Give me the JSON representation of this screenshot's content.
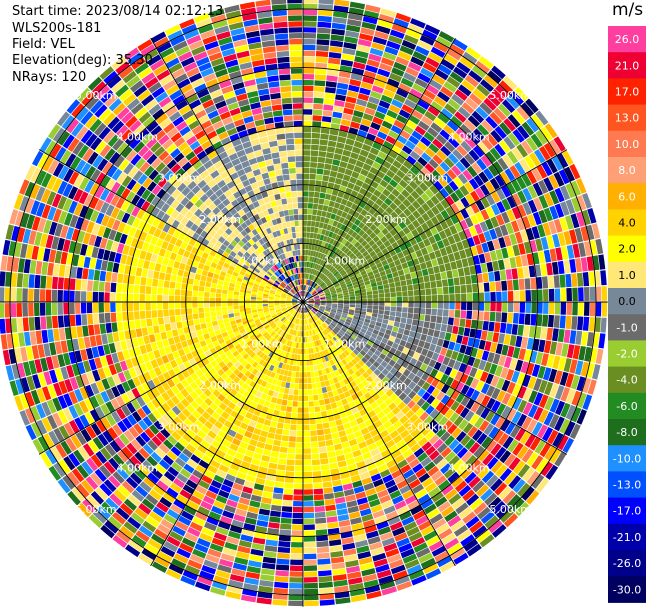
{
  "header": {
    "start_time": "Start time: 2023/08/14 02:12:13",
    "site": "WLS200s-181",
    "field": "Field: VEL",
    "elevation": "Elevation(deg): 35.30",
    "nrays": "NRays: 120"
  },
  "colorbar": {
    "unit": "m/s",
    "labels": [
      "26.0",
      "21.0",
      "17.0",
      "13.0",
      "10.0",
      "8.0",
      "6.0",
      "4.0",
      "2.0",
      "1.0",
      "0.0",
      "-1.0",
      "-2.0",
      "-4.0",
      "-6.0",
      "-8.0",
      "-10.0",
      "-13.0",
      "-17.0",
      "-21.0",
      "-26.0",
      "-30.0"
    ],
    "colors": [
      "#ff3fa0",
      "#ee0033",
      "#ff2200",
      "#ff5520",
      "#ff7a50",
      "#ff9f75",
      "#ffb000",
      "#ffd200",
      "#ffff00",
      "#ffe878",
      "#778899",
      "#6b6b6b",
      "#9acd32",
      "#6b8e23",
      "#228b22",
      "#1e6e1e",
      "#1e90ff",
      "#0050ff",
      "#0000ff",
      "#0000aa",
      "#00008b",
      "#000060"
    ]
  },
  "chart_data": {
    "type": "heatmap",
    "projection": "polar PPI",
    "field": "VEL",
    "units": "m/s",
    "color_range": [
      -30,
      26
    ],
    "nrays": 120,
    "range_ring_labels": [
      "1.00km",
      "2.00km",
      "3.00km",
      "4.00km",
      "5.00km"
    ],
    "range_rings_km": [
      1,
      2,
      3,
      4,
      5
    ],
    "max_range_km": 5.2,
    "regions": [
      {
        "sector_deg": [
          0,
          90
        ],
        "range_km": [
          0.4,
          3.0
        ],
        "velocity_ms": -5,
        "note": "green"
      },
      {
        "sector_deg": [
          300,
          360
        ],
        "range_km": [
          0.8,
          3.0
        ],
        "velocity_ms": 0,
        "note": "gray"
      },
      {
        "sector_deg": [
          90,
          135
        ],
        "range_km": [
          0.3,
          2.5
        ],
        "velocity_ms": -1,
        "note": "gray-olive"
      },
      {
        "sector_deg": [
          135,
          300
        ],
        "range_km": [
          0.2,
          3.2
        ],
        "velocity_ms": 2,
        "note": "yellow"
      },
      {
        "sector_deg": [
          0,
          360
        ],
        "range_km": [
          3.0,
          5.2
        ],
        "velocity_ms": null,
        "note": "noise"
      }
    ]
  }
}
